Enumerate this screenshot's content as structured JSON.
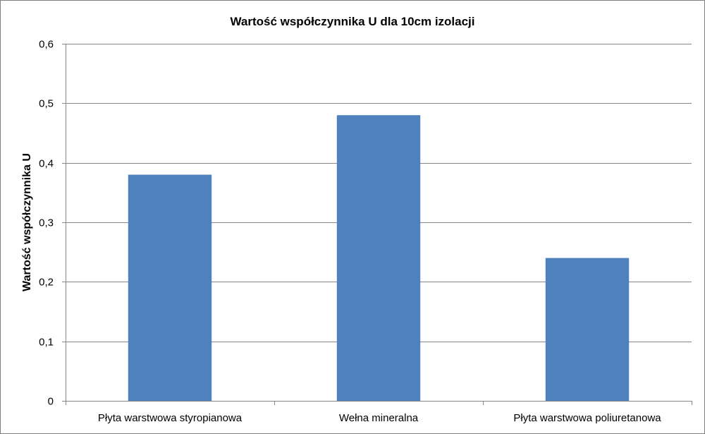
{
  "chart_data": {
    "type": "bar",
    "title": "Wartość współczynnika U dla 10cm izolacji",
    "xlabel": "",
    "ylabel": "Wartość współczynnika U",
    "categories": [
      "Płyta warstwowa styropianowa",
      "Wełna mineralna",
      "Płyta warstwowa poliuretanowa"
    ],
    "values": [
      0.38,
      0.48,
      0.24
    ],
    "ylim": [
      0,
      0.6
    ],
    "yticks": [
      0,
      0.1,
      0.2,
      0.3,
      0.4,
      0.5,
      0.6
    ],
    "ytick_labels": [
      "0",
      "0,1",
      "0,2",
      "0,3",
      "0,4",
      "0,5",
      "0,6"
    ],
    "grid": true,
    "legend": "none",
    "bar_color": "#4f81bd",
    "gridline_color": "#868686"
  }
}
